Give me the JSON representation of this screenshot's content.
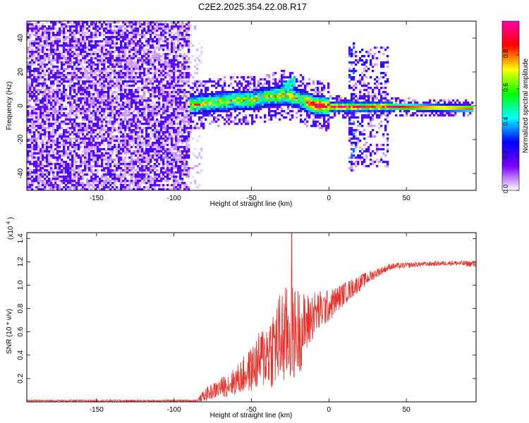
{
  "title": "C2E2.2025.354.22.08.R17",
  "chart_data": [
    {
      "type": "heatmap",
      "name": "spectrogram",
      "xlabel": "Height of straight line (km)",
      "ylabel": "Frequency (Hz)",
      "xlim": [
        -195,
        95
      ],
      "ylim": [
        -50,
        50
      ],
      "xticks": [
        -150,
        -100,
        -50,
        0,
        50
      ],
      "yticks": [
        -40,
        -20,
        0,
        20,
        40
      ],
      "xtick_labels": [
        "-150",
        "-100",
        "-50",
        "0",
        "50"
      ],
      "ytick_labels": [
        "-40",
        "-20",
        "0",
        "20",
        "40"
      ],
      "noise_regions": [
        {
          "x": [
            -195,
            -90
          ],
          "y": [
            -50,
            50
          ],
          "density": 0.75,
          "level": 0.2
        },
        {
          "x": [
            -90,
            -82
          ],
          "y": [
            -48,
            48
          ],
          "density": 0.15,
          "level": 0.1
        },
        {
          "x": [
            12,
            16
          ],
          "y": [
            -38,
            38
          ],
          "density": 0.55,
          "level": 0.3
        },
        {
          "x": [
            16,
            38
          ],
          "y": [
            -35,
            35
          ],
          "density": 0.35,
          "level": 0.25
        }
      ],
      "ridge": [
        {
          "x": -90,
          "y": 1
        },
        {
          "x": -80,
          "y": 2
        },
        {
          "x": -70,
          "y": 3
        },
        {
          "x": -60,
          "y": 4
        },
        {
          "x": -50,
          "y": 4
        },
        {
          "x": -40,
          "y": 6
        },
        {
          "x": -30,
          "y": 7
        },
        {
          "x": -20,
          "y": 5
        },
        {
          "x": -10,
          "y": 1
        },
        {
          "x": 0,
          "y": 0
        },
        {
          "x": 10,
          "y": 0
        },
        {
          "x": 40,
          "y": 0
        },
        {
          "x": 92,
          "y": -1
        }
      ],
      "side_ridge": [
        {
          "x": -30,
          "y": 12
        },
        {
          "x": -24,
          "y": 14
        },
        {
          "x": -22,
          "y": 16
        }
      ],
      "colorbar": {
        "label": "Normalized spectral amplitude",
        "range": [
          0,
          1
        ],
        "ticks": [
          0.0,
          0.2,
          0.4,
          0.6,
          0.8
        ],
        "tick_labels": [
          "0.0",
          "0.2",
          "0.4",
          "0.6",
          "0.8"
        ],
        "colors": [
          "#ffffff",
          "#7a00ff",
          "#0000ff",
          "#00ffff",
          "#00ff00",
          "#ffff00",
          "#ff0000",
          "#ff00aa"
        ]
      }
    },
    {
      "type": "line",
      "name": "snr",
      "xlabel": "Height of straight line (km)",
      "ylabel": "SNR (10 * v/v)",
      "scale_label": "(x10",
      "scale_exponent": "4",
      "scale_close": ")",
      "xlim": [
        -195,
        95
      ],
      "ylim": [
        0,
        1.45
      ],
      "xticks": [
        -150,
        -100,
        -50,
        0,
        50
      ],
      "yticks": [
        0.2,
        0.4,
        0.6,
        0.8,
        1.0,
        1.2,
        1.4
      ],
      "xtick_labels": [
        "-150",
        "-100",
        "-50",
        "0",
        "50"
      ],
      "ytick_labels": [
        "0.2",
        "0.4",
        "0.6",
        "0.8",
        "1.0",
        "1.2",
        "1.4"
      ],
      "color": "#e8302a",
      "series_envelope": [
        {
          "x": -195,
          "mean": 0.01,
          "spread": 0.005
        },
        {
          "x": -85,
          "mean": 0.01,
          "spread": 0.006
        },
        {
          "x": -80,
          "mean": 0.06,
          "spread": 0.04
        },
        {
          "x": -70,
          "mean": 0.12,
          "spread": 0.06
        },
        {
          "x": -60,
          "mean": 0.18,
          "spread": 0.09
        },
        {
          "x": -50,
          "mean": 0.28,
          "spread": 0.14
        },
        {
          "x": -40,
          "mean": 0.42,
          "spread": 0.22
        },
        {
          "x": -30,
          "mean": 0.55,
          "spread": 0.32
        },
        {
          "x": -20,
          "mean": 0.6,
          "spread": 0.28
        },
        {
          "x": -15,
          "mean": 0.65,
          "spread": 0.2
        },
        {
          "x": -10,
          "mean": 0.75,
          "spread": 0.15
        },
        {
          "x": 0,
          "mean": 0.82,
          "spread": 0.1
        },
        {
          "x": 10,
          "mean": 0.93,
          "spread": 0.07
        },
        {
          "x": 20,
          "mean": 1.02,
          "spread": 0.05
        },
        {
          "x": 30,
          "mean": 1.1,
          "spread": 0.03
        },
        {
          "x": 40,
          "mean": 1.16,
          "spread": 0.02
        },
        {
          "x": 60,
          "mean": 1.18,
          "spread": 0.015
        },
        {
          "x": 80,
          "mean": 1.19,
          "spread": 0.015
        },
        {
          "x": 95,
          "mean": 1.18,
          "spread": 0.02
        }
      ],
      "peak": {
        "x": -24,
        "y": 1.45
      }
    }
  ]
}
